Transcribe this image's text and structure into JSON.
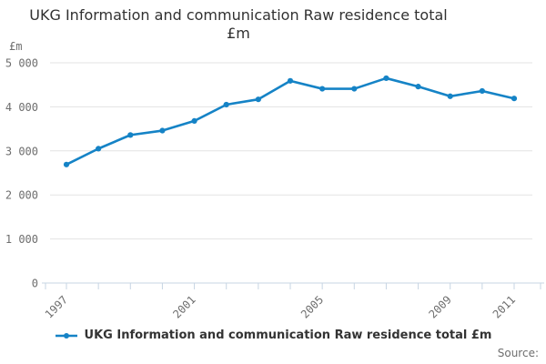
{
  "header": {
    "title_line1": "UKG Information and communication Raw residence total",
    "title_line2": "£m"
  },
  "axes": {
    "y_unit_label": "£m"
  },
  "legend": {
    "label": "UKG Information and communication Raw residence total £m"
  },
  "footer": {
    "source_label": "Source:"
  },
  "colors": {
    "line": "#1583c6",
    "grid": "#e3e3e3",
    "axis": "#c7d5e3",
    "tick_text": "#6e6e6e",
    "title_text": "#313131",
    "legend_text": "#333333",
    "source_text": "#6e6e6e"
  },
  "chart_data": {
    "type": "line",
    "title": "UKG Information and communication Raw residence total £m",
    "xlabel": "",
    "ylabel": "£m",
    "x": [
      1997,
      1998,
      1999,
      2000,
      2001,
      2002,
      2003,
      2004,
      2005,
      2006,
      2007,
      2008,
      2009,
      2010,
      2011
    ],
    "series": [
      {
        "name": "UKG Information and communication Raw residence total £m",
        "values": [
          2690,
          3050,
          3360,
          3460,
          3680,
          4050,
          4170,
          4590,
          4410,
          4410,
          4650,
          4460,
          4240,
          4360,
          4190
        ]
      }
    ],
    "ylim": [
      0,
      5000
    ],
    "yticks": [
      0,
      1000,
      2000,
      3000,
      4000,
      5000
    ],
    "ytick_labels": [
      "0",
      "1 000",
      "2 000",
      "3 000",
      "4 000",
      "5 000"
    ],
    "xticks_labeled": [
      1997,
      2001,
      2005,
      2009,
      2011
    ],
    "grid": true,
    "marker": "circle",
    "legend_position": "bottom"
  }
}
